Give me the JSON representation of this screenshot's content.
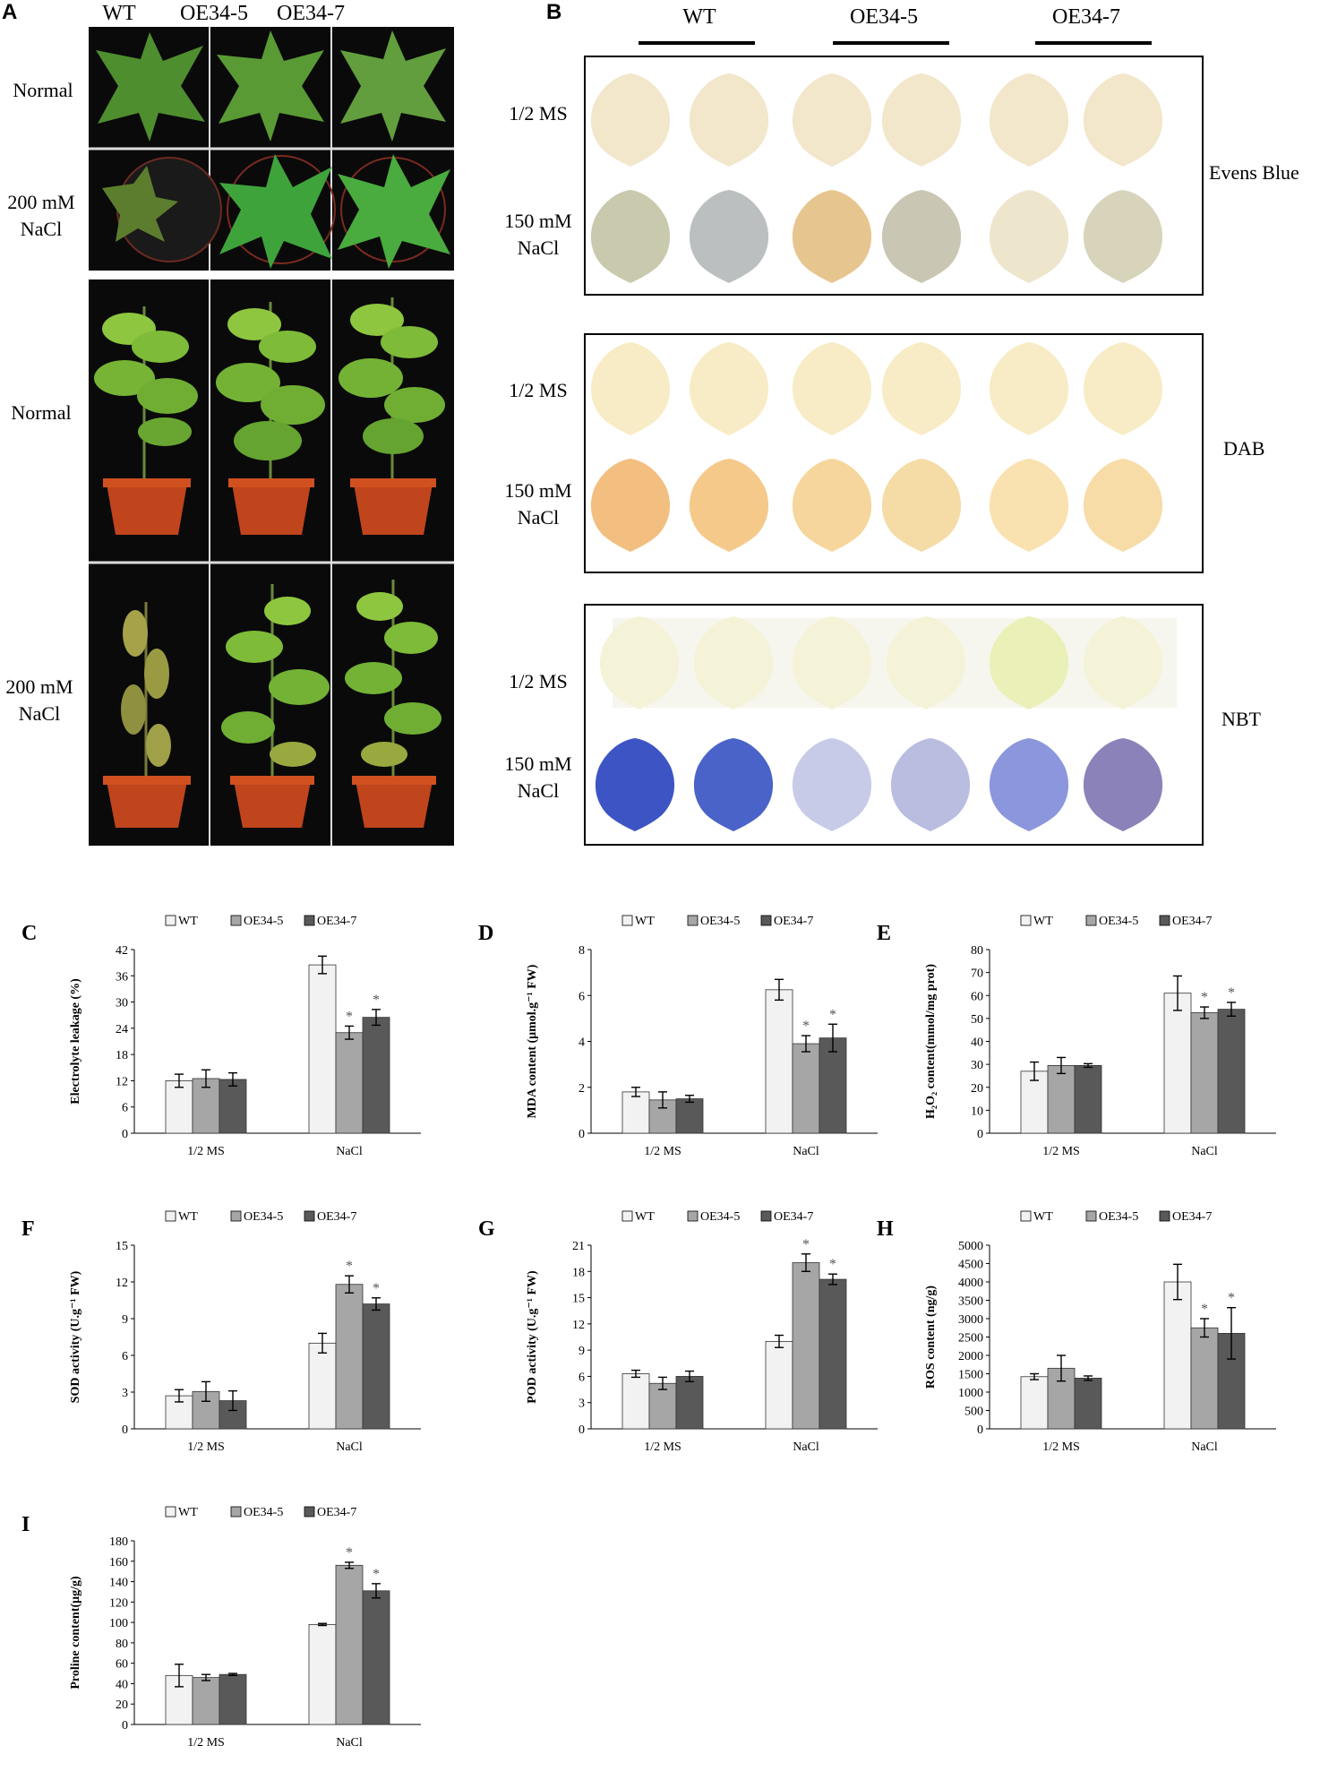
{
  "panelA": {
    "label": "A",
    "columns": [
      "WT",
      "OE34-5",
      "OE34-7"
    ],
    "rows": [
      {
        "line1": "Normal",
        "line2": ""
      },
      {
        "line1": "200 mM",
        "line2": "NaCl"
      },
      {
        "line1": "Normal",
        "line2": ""
      },
      {
        "line1": "200 mM",
        "line2": "NaCl"
      }
    ]
  },
  "panelB": {
    "label": "B",
    "columns": [
      "WT",
      "OE34-5",
      "OE34-7"
    ],
    "treat1": "1/2 MS",
    "treat2_l1": "150 mM",
    "treat2_l2": "NaCl",
    "stains": [
      "Evens Blue",
      "DAB",
      "NBT"
    ]
  },
  "legend": [
    "WT",
    "OE34-5",
    "OE34-7"
  ],
  "colors": {
    "wt": "#f2f2f2",
    "oe5": "#a6a6a6",
    "oe7": "#595959"
  },
  "chart_data": [
    {
      "label": "C",
      "type": "bar",
      "ylabel": "Electrolyte leakage (%)",
      "categories": [
        "1/2 MS",
        "NaCl"
      ],
      "ylim": [
        0,
        42
      ],
      "ticks": [
        "0",
        "6",
        "12",
        "18",
        "24",
        "30",
        "36",
        "42"
      ],
      "series": [
        {
          "name": "WT",
          "values": [
            12,
            38.5
          ],
          "err": [
            1.5,
            2
          ]
        },
        {
          "name": "OE34-5",
          "values": [
            12.5,
            23
          ],
          "err": [
            2,
            1.5
          ]
        },
        {
          "name": "OE34-7",
          "values": [
            12.3,
            26.5
          ],
          "err": [
            1.5,
            1.8
          ]
        }
      ],
      "stars": [
        [
          false,
          false,
          false
        ],
        [
          false,
          true,
          true
        ]
      ]
    },
    {
      "label": "D",
      "type": "bar",
      "ylabel": "MDA content (μmol.g⁻¹ FW)",
      "categories": [
        "1/2 MS",
        "NaCl"
      ],
      "ylim": [
        0,
        8
      ],
      "ticks": [
        "0",
        "2",
        "4",
        "6",
        "8"
      ],
      "series": [
        {
          "name": "WT",
          "values": [
            1.8,
            6.25
          ],
          "err": [
            0.2,
            0.45
          ]
        },
        {
          "name": "OE34-5",
          "values": [
            1.45,
            3.9
          ],
          "err": [
            0.35,
            0.35
          ]
        },
        {
          "name": "OE34-7",
          "values": [
            1.5,
            4.15
          ],
          "err": [
            0.15,
            0.6
          ]
        }
      ],
      "stars": [
        [
          false,
          false,
          false
        ],
        [
          false,
          true,
          true
        ]
      ]
    },
    {
      "label": "E",
      "type": "bar",
      "ylabel": "H₂O₂ content(mmol/mg prot)",
      "categories": [
        "1/2 MS",
        "NaCl"
      ],
      "ylim": [
        0,
        80
      ],
      "ticks": [
        "0",
        "10",
        "20",
        "30",
        "40",
        "50",
        "60",
        "70",
        "80"
      ],
      "series": [
        {
          "name": "WT",
          "values": [
            27,
            61
          ],
          "err": [
            4,
            7.5
          ]
        },
        {
          "name": "OE34-5",
          "values": [
            29.5,
            52.5
          ],
          "err": [
            3.5,
            2.5
          ]
        },
        {
          "name": "OE34-7",
          "values": [
            29.5,
            54
          ],
          "err": [
            0.8,
            3
          ]
        }
      ],
      "stars": [
        [
          false,
          false,
          false
        ],
        [
          false,
          true,
          true
        ]
      ]
    },
    {
      "label": "F",
      "type": "bar",
      "ylabel": "SOD activity (U.g⁻¹ FW)",
      "categories": [
        "1/2 MS",
        "NaCl"
      ],
      "ylim": [
        0,
        15
      ],
      "ticks": [
        "0",
        "3",
        "6",
        "9",
        "12",
        "15"
      ],
      "series": [
        {
          "name": "WT",
          "values": [
            2.7,
            7
          ],
          "err": [
            0.5,
            0.8
          ]
        },
        {
          "name": "OE34-5",
          "values": [
            3.05,
            11.8
          ],
          "err": [
            0.8,
            0.7
          ]
        },
        {
          "name": "OE34-7",
          "values": [
            2.3,
            10.2
          ],
          "err": [
            0.8,
            0.5
          ]
        }
      ],
      "stars": [
        [
          false,
          false,
          false
        ],
        [
          false,
          true,
          true
        ]
      ]
    },
    {
      "label": "G",
      "type": "bar",
      "ylabel": "POD activity (U.g⁻¹ FW)",
      "categories": [
        "1/2 MS",
        "NaCl"
      ],
      "ylim": [
        0,
        21
      ],
      "ticks": [
        "0",
        "3",
        "6",
        "9",
        "12",
        "15",
        "18",
        "21"
      ],
      "series": [
        {
          "name": "WT",
          "values": [
            6.3,
            10
          ],
          "err": [
            0.4,
            0.7
          ]
        },
        {
          "name": "OE34-5",
          "values": [
            5.2,
            19
          ],
          "err": [
            0.7,
            1
          ]
        },
        {
          "name": "OE34-7",
          "values": [
            6,
            17.1
          ],
          "err": [
            0.6,
            0.6
          ]
        }
      ],
      "stars": [
        [
          false,
          false,
          false
        ],
        [
          false,
          true,
          true
        ]
      ]
    },
    {
      "label": "H",
      "type": "bar",
      "ylabel": "ROS content (ng/g)",
      "categories": [
        "1/2 MS",
        "NaCl"
      ],
      "ylim": [
        0,
        5000
      ],
      "ticks": [
        "0",
        "500",
        "1000",
        "1500",
        "2000",
        "2500",
        "3000",
        "3500",
        "4000",
        "4500",
        "5000"
      ],
      "series": [
        {
          "name": "WT",
          "values": [
            1420,
            4000
          ],
          "err": [
            80,
            480
          ]
        },
        {
          "name": "OE34-5",
          "values": [
            1650,
            2750
          ],
          "err": [
            350,
            250
          ]
        },
        {
          "name": "OE34-7",
          "values": [
            1380,
            2600
          ],
          "err": [
            60,
            700
          ]
        }
      ],
      "stars": [
        [
          false,
          false,
          false
        ],
        [
          false,
          true,
          true
        ]
      ]
    },
    {
      "label": "I",
      "type": "bar",
      "ylabel": "Proline content(μg/g)",
      "categories": [
        "1/2 MS",
        "NaCl"
      ],
      "ylim": [
        0,
        180
      ],
      "ticks": [
        "0",
        "20",
        "40",
        "60",
        "80",
        "100",
        "120",
        "140",
        "160",
        "180"
      ],
      "series": [
        {
          "name": "WT",
          "values": [
            48,
            98
          ],
          "err": [
            11,
            1
          ]
        },
        {
          "name": "OE34-5",
          "values": [
            46,
            156
          ],
          "err": [
            3,
            3
          ]
        },
        {
          "name": "OE34-7",
          "values": [
            49,
            131
          ],
          "err": [
            1,
            7
          ]
        }
      ],
      "stars": [
        [
          false,
          false,
          false
        ],
        [
          false,
          true,
          true
        ]
      ]
    }
  ]
}
